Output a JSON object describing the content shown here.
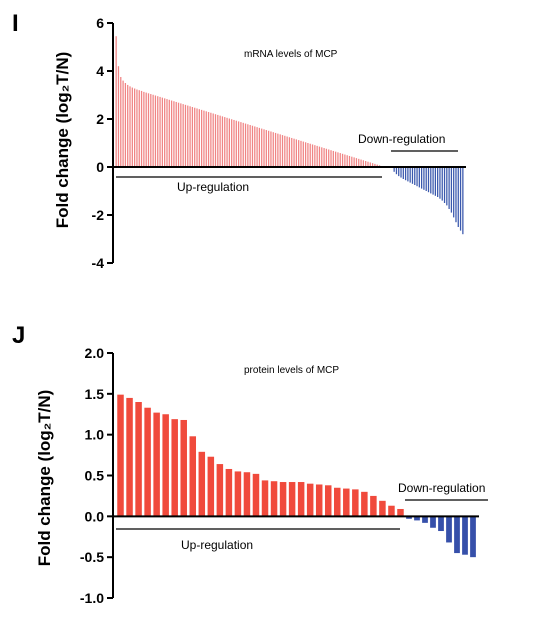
{
  "chart_data": [
    {
      "type": "bar",
      "panel": "I",
      "title": "mRNA levels of MCP",
      "ylabel": "Fold change (log₂T/N)",
      "ylim": [
        -4,
        6
      ],
      "yticks": [
        -4,
        -2,
        0,
        2,
        4,
        6
      ],
      "colors": {
        "up": "#f08484",
        "down": "#3a58ad"
      },
      "up_values": [
        5.45,
        4.2,
        3.75,
        3.6,
        3.5,
        3.42,
        3.36,
        3.31,
        3.27,
        3.23,
        3.2,
        3.17,
        3.13,
        3.1,
        3.07,
        3.04,
        3.01,
        2.98,
        2.95,
        2.92,
        2.89,
        2.86,
        2.83,
        2.8,
        2.77,
        2.74,
        2.71,
        2.68,
        2.65,
        2.62,
        2.59,
        2.56,
        2.53,
        2.5,
        2.47,
        2.44,
        2.41,
        2.38,
        2.35,
        2.32,
        2.29,
        2.26,
        2.23,
        2.2,
        2.17,
        2.14,
        2.11,
        2.08,
        2.05,
        2.02,
        1.99,
        1.96,
        1.93,
        1.9,
        1.87,
        1.84,
        1.81,
        1.78,
        1.75,
        1.72,
        1.69,
        1.66,
        1.63,
        1.6,
        1.57,
        1.54,
        1.51,
        1.48,
        1.45,
        1.42,
        1.39,
        1.36,
        1.33,
        1.3,
        1.27,
        1.24,
        1.21,
        1.18,
        1.15,
        1.12,
        1.09,
        1.06,
        1.03,
        1.0,
        0.97,
        0.94,
        0.91,
        0.88,
        0.85,
        0.82,
        0.79,
        0.76,
        0.73,
        0.7,
        0.67,
        0.64,
        0.61,
        0.58,
        0.55,
        0.52,
        0.49,
        0.46,
        0.43,
        0.4,
        0.37,
        0.34,
        0.31,
        0.28,
        0.25,
        0.22,
        0.19,
        0.16,
        0.13,
        0.1,
        0.07,
        0.04
      ],
      "down_values": [
        -0.2,
        -0.3,
        -0.38,
        -0.44,
        -0.5,
        -0.55,
        -0.6,
        -0.65,
        -0.7,
        -0.75,
        -0.8,
        -0.85,
        -0.9,
        -0.95,
        -1.0,
        -1.05,
        -1.1,
        -1.15,
        -1.2,
        -1.25,
        -1.32,
        -1.4,
        -1.5,
        -1.6,
        -1.75,
        -1.9,
        -2.1,
        -2.3,
        -2.5,
        -2.65,
        -2.8
      ],
      "annotations": {
        "up": "Up-regulation",
        "down": "Down-regulation"
      }
    },
    {
      "type": "bar",
      "panel": "J",
      "title": "protein levels of MCP",
      "ylabel": "Fold change (log₂T/N)",
      "ylim": [
        -1.0,
        2.0
      ],
      "yticks": [
        -1.0,
        -0.5,
        0.0,
        0.5,
        1.0,
        1.5,
        2.0
      ],
      "colors": {
        "up": "#f04a3c",
        "down": "#3650aa"
      },
      "up_values": [
        1.49,
        1.45,
        1.4,
        1.33,
        1.27,
        1.25,
        1.19,
        1.18,
        0.98,
        0.79,
        0.73,
        0.64,
        0.58,
        0.55,
        0.54,
        0.52,
        0.44,
        0.43,
        0.42,
        0.42,
        0.42,
        0.4,
        0.39,
        0.38,
        0.35,
        0.34,
        0.33,
        0.3,
        0.25,
        0.19,
        0.13,
        0.09
      ],
      "down_values": [
        -0.03,
        -0.05,
        -0.08,
        -0.14,
        -0.18,
        -0.32,
        -0.45,
        -0.47,
        -0.5
      ],
      "annotations": {
        "up": "Up-regulation",
        "down": "Down-regulation"
      }
    }
  ]
}
